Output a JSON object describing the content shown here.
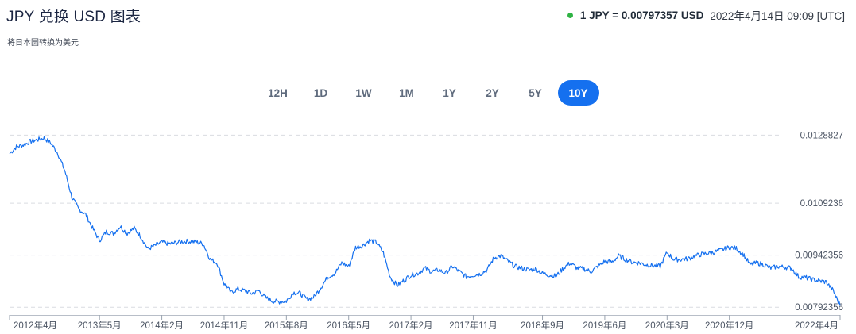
{
  "header": {
    "title": "JPY 兑换 USD 图表",
    "subtitle": "将日本圆转换为美元",
    "rate_value": "1 JPY = 0.00797357 USD",
    "rate_time": "2022年4月14日 09:09 [UTC]",
    "live_color": "#2fb344"
  },
  "ranges": [
    {
      "label": "12H",
      "active": false
    },
    {
      "label": "1D",
      "active": false
    },
    {
      "label": "1W",
      "active": false
    },
    {
      "label": "1M",
      "active": false
    },
    {
      "label": "1Y",
      "active": false
    },
    {
      "label": "2Y",
      "active": false
    },
    {
      "label": "5Y",
      "active": false
    },
    {
      "label": "10Y",
      "active": true
    }
  ],
  "chart_data": {
    "type": "line",
    "series_color": "#1570ef",
    "grid": "horizontal dashed at reference levels",
    "y_reference_labels": [
      "0.0128827",
      "0.0109236",
      "0.00942356",
      "0.00792356"
    ],
    "y_reference_values": [
      0.0128827,
      0.0109236,
      0.00942356,
      0.00792356
    ],
    "ylim": [
      0.0077,
      0.01335
    ],
    "x_tick_labels": [
      "2012年4月",
      "2013年5月",
      "2014年2月",
      "2014年11月",
      "2015年8月",
      "2016年5月",
      "2017年2月",
      "2017年11月",
      "2018年9月",
      "2019年6月",
      "2020年3月",
      "2020年12月",
      "2022年4月"
    ],
    "x_tick_dates": [
      "2012-04",
      "2013-05",
      "2014-02",
      "2014-11",
      "2015-08",
      "2016-05",
      "2017-02",
      "2017-11",
      "2018-09",
      "2019-06",
      "2020-03",
      "2020-12",
      "2022-04"
    ],
    "xlim": [
      "2012-04",
      "2022-04"
    ],
    "points": [
      [
        "2012-04",
        0.01235
      ],
      [
        "2012-05",
        0.01255
      ],
      [
        "2012-06",
        0.0126
      ],
      [
        "2012-07",
        0.0127
      ],
      [
        "2012-08",
        0.01275
      ],
      [
        "2012-09",
        0.0128
      ],
      [
        "2012-10",
        0.01265
      ],
      [
        "2012-11",
        0.01235
      ],
      [
        "2012-12",
        0.01185
      ],
      [
        "2013-01",
        0.0111
      ],
      [
        "2013-02",
        0.01075
      ],
      [
        "2013-03",
        0.0106
      ],
      [
        "2013-04",
        0.0102
      ],
      [
        "2013-05",
        0.00985
      ],
      [
        "2013-06",
        0.0101
      ],
      [
        "2013-07",
        0.01005
      ],
      [
        "2013-08",
        0.01025
      ],
      [
        "2013-09",
        0.01005
      ],
      [
        "2013-10",
        0.0102
      ],
      [
        "2013-11",
        0.00995
      ],
      [
        "2013-12",
        0.0096
      ],
      [
        "2014-01",
        0.0097
      ],
      [
        "2014-02",
        0.0098
      ],
      [
        "2014-03",
        0.00975
      ],
      [
        "2014-04",
        0.00978
      ],
      [
        "2014-05",
        0.00982
      ],
      [
        "2014-06",
        0.00982
      ],
      [
        "2014-07",
        0.0098
      ],
      [
        "2014-08",
        0.00975
      ],
      [
        "2014-09",
        0.0093
      ],
      [
        "2014-10",
        0.0092
      ],
      [
        "2014-11",
        0.0086
      ],
      [
        "2014-12",
        0.00835
      ],
      [
        "2015-01",
        0.00845
      ],
      [
        "2015-02",
        0.0084
      ],
      [
        "2015-03",
        0.00832
      ],
      [
        "2015-04",
        0.0084
      ],
      [
        "2015-05",
        0.0082
      ],
      [
        "2015-06",
        0.0081
      ],
      [
        "2015-07",
        0.00808
      ],
      [
        "2015-08",
        0.0081
      ],
      [
        "2015-09",
        0.00835
      ],
      [
        "2015-10",
        0.00832
      ],
      [
        "2015-11",
        0.00815
      ],
      [
        "2015-12",
        0.00822
      ],
      [
        "2016-01",
        0.0085
      ],
      [
        "2016-02",
        0.0088
      ],
      [
        "2016-03",
        0.0089
      ],
      [
        "2016-04",
        0.0092
      ],
      [
        "2016-05",
        0.0091
      ],
      [
        "2016-06",
        0.00965
      ],
      [
        "2016-07",
        0.0097
      ],
      [
        "2016-08",
        0.00985
      ],
      [
        "2016-09",
        0.0098
      ],
      [
        "2016-10",
        0.0095
      ],
      [
        "2016-11",
        0.0088
      ],
      [
        "2016-12",
        0.00855
      ],
      [
        "2017-01",
        0.0087
      ],
      [
        "2017-02",
        0.00885
      ],
      [
        "2017-03",
        0.0089
      ],
      [
        "2017-04",
        0.00905
      ],
      [
        "2017-05",
        0.00895
      ],
      [
        "2017-06",
        0.009
      ],
      [
        "2017-07",
        0.0089
      ],
      [
        "2017-08",
        0.0091
      ],
      [
        "2017-09",
        0.00895
      ],
      [
        "2017-10",
        0.0088
      ],
      [
        "2017-11",
        0.00885
      ],
      [
        "2017-12",
        0.00888
      ],
      [
        "2018-01",
        0.009
      ],
      [
        "2018-02",
        0.00935
      ],
      [
        "2018-03",
        0.0094
      ],
      [
        "2018-04",
        0.00925
      ],
      [
        "2018-05",
        0.0091
      ],
      [
        "2018-06",
        0.00905
      ],
      [
        "2018-07",
        0.009
      ],
      [
        "2018-08",
        0.00903
      ],
      [
        "2018-09",
        0.0089
      ],
      [
        "2018-10",
        0.00885
      ],
      [
        "2018-11",
        0.00882
      ],
      [
        "2018-12",
        0.00905
      ],
      [
        "2019-01",
        0.0092
      ],
      [
        "2019-02",
        0.00905
      ],
      [
        "2019-03",
        0.00903
      ],
      [
        "2019-04",
        0.00895
      ],
      [
        "2019-05",
        0.0091
      ],
      [
        "2019-06",
        0.00925
      ],
      [
        "2019-07",
        0.00922
      ],
      [
        "2019-08",
        0.0094
      ],
      [
        "2019-09",
        0.0093
      ],
      [
        "2019-10",
        0.00922
      ],
      [
        "2019-11",
        0.0092
      ],
      [
        "2019-12",
        0.00915
      ],
      [
        "2020-01",
        0.00912
      ],
      [
        "2020-02",
        0.0091
      ],
      [
        "2020-03",
        0.0095
      ],
      [
        "2020-04",
        0.0093
      ],
      [
        "2020-05",
        0.0093
      ],
      [
        "2020-06",
        0.00932
      ],
      [
        "2020-07",
        0.0094
      ],
      [
        "2020-08",
        0.00945
      ],
      [
        "2020-09",
        0.00948
      ],
      [
        "2020-10",
        0.00952
      ],
      [
        "2020-11",
        0.00958
      ],
      [
        "2020-12",
        0.00965
      ],
      [
        "2021-01",
        0.00962
      ],
      [
        "2021-02",
        0.00945
      ],
      [
        "2021-03",
        0.00915
      ],
      [
        "2021-04",
        0.0092
      ],
      [
        "2021-05",
        0.00915
      ],
      [
        "2021-06",
        0.00905
      ],
      [
        "2021-07",
        0.0091
      ],
      [
        "2021-08",
        0.00908
      ],
      [
        "2021-09",
        0.00905
      ],
      [
        "2021-10",
        0.0088
      ],
      [
        "2021-11",
        0.00878
      ],
      [
        "2021-12",
        0.00872
      ],
      [
        "2022-01",
        0.00868
      ],
      [
        "2022-02",
        0.00865
      ],
      [
        "2022-03",
        0.0084
      ],
      [
        "2022-04",
        0.00797
      ]
    ]
  }
}
